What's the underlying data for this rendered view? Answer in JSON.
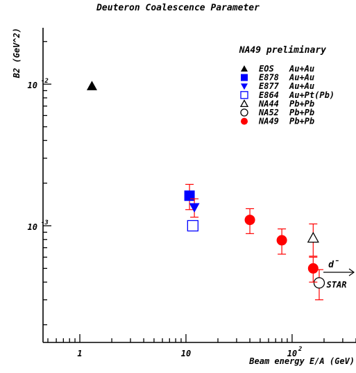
{
  "chart_data": {
    "type": "scatter",
    "title": "Deuteron Coalescence Parameter",
    "xlabel": "Beam energy E/A (GeV)",
    "ylabel": "B2 (GeV^2)",
    "xscale": "log",
    "yscale": "log",
    "xlim": [
      0.45,
      400
    ],
    "ylim": [
      0.00015,
      0.025
    ],
    "x_ticks": [
      {
        "value": 1,
        "label": "1"
      },
      {
        "value": 10,
        "label": "10"
      },
      {
        "value": 100,
        "label": "10",
        "exp": "2"
      }
    ],
    "y_ticks": [
      {
        "value": 0.01,
        "label": "10",
        "exp": "-2"
      },
      {
        "value": 0.001,
        "label": "10",
        "exp": "-3"
      }
    ],
    "annotation": "NA49 preliminary",
    "legend_position": "top-right",
    "series": [
      {
        "name": "EOS",
        "system": "Au+Au",
        "marker": "triangle-up",
        "filled": true,
        "color": "#000000",
        "points": [
          {
            "x": 1.3,
            "y": 0.0097
          }
        ]
      },
      {
        "name": "E878",
        "system": "Au+Au",
        "marker": "square",
        "filled": true,
        "color": "#0000ff",
        "points": [
          {
            "x": 10.8,
            "y": 0.00163,
            "err": 0.00033
          }
        ]
      },
      {
        "name": "E877",
        "system": "Au+Au",
        "marker": "triangle-down",
        "filled": true,
        "color": "#0000ff",
        "points": [
          {
            "x": 12,
            "y": 0.00135,
            "err": 0.0002
          }
        ]
      },
      {
        "name": "E864",
        "system": "Au+Pt(Pb)",
        "marker": "square",
        "filled": false,
        "color": "#0000ff",
        "points": [
          {
            "x": 11.6,
            "y": 0.001,
            "err": 8e-05
          }
        ]
      },
      {
        "name": "NA44",
        "system": "Pb+Pb",
        "marker": "triangle-up",
        "filled": false,
        "color": "#000000",
        "points": [
          {
            "x": 158,
            "y": 0.00082,
            "err": 0.00021
          }
        ]
      },
      {
        "name": "NA52",
        "system": "Pb+Pb",
        "marker": "circle",
        "filled": false,
        "color": "#000000",
        "points": [
          {
            "x": 180,
            "y": 0.000395,
            "err": 9.5e-05
          }
        ]
      },
      {
        "name": "NA49",
        "system": "Pb+Pb",
        "marker": "circle",
        "filled": true,
        "color": "#ff0000",
        "points": [
          {
            "x": 40,
            "y": 0.0011,
            "err": 0.00022
          },
          {
            "x": 80,
            "y": 0.00079,
            "err": 0.00016
          },
          {
            "x": 158,
            "y": 0.0005,
            "err": 0.0001
          }
        ]
      }
    ],
    "star_label": "STAR",
    "star_symbol": "d̄"
  }
}
